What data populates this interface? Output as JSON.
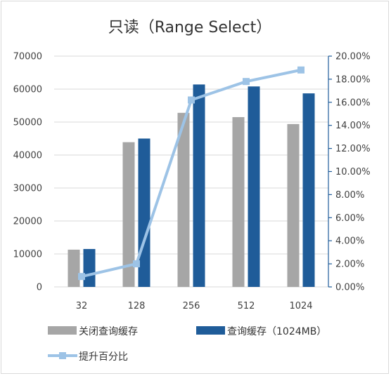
{
  "chart_data": {
    "type": "bar",
    "title": "只读（Range Select）",
    "categories": [
      "32",
      "128",
      "256",
      "512",
      "1024"
    ],
    "series": [
      {
        "name": "关闭查询缓存",
        "type": "bar",
        "axis": "left",
        "color": "#a6a6a6",
        "values": [
          11300,
          43900,
          52800,
          51500,
          49400
        ]
      },
      {
        "name": "查询缓存（1024MB）",
        "type": "bar",
        "axis": "left",
        "color": "#1f5c99",
        "values": [
          11500,
          45000,
          61400,
          60800,
          58700
        ]
      },
      {
        "name": "提升百分比",
        "type": "line",
        "axis": "right",
        "color": "#9dc3e6",
        "values": [
          0.009,
          0.02,
          0.162,
          0.178,
          0.188
        ]
      }
    ],
    "y_left": {
      "range": [
        0,
        70000
      ],
      "ticks": [
        "0",
        "10000",
        "20000",
        "30000",
        "40000",
        "50000",
        "60000",
        "70000"
      ]
    },
    "y_right": {
      "range": [
        0,
        0.2
      ],
      "ticks": [
        "0.00%",
        "2.00%",
        "4.00%",
        "6.00%",
        "8.00%",
        "10.00%",
        "12.00%",
        "14.00%",
        "16.00%",
        "18.00%",
        "20.00%"
      ]
    },
    "grid": true,
    "legend": "bottom"
  }
}
